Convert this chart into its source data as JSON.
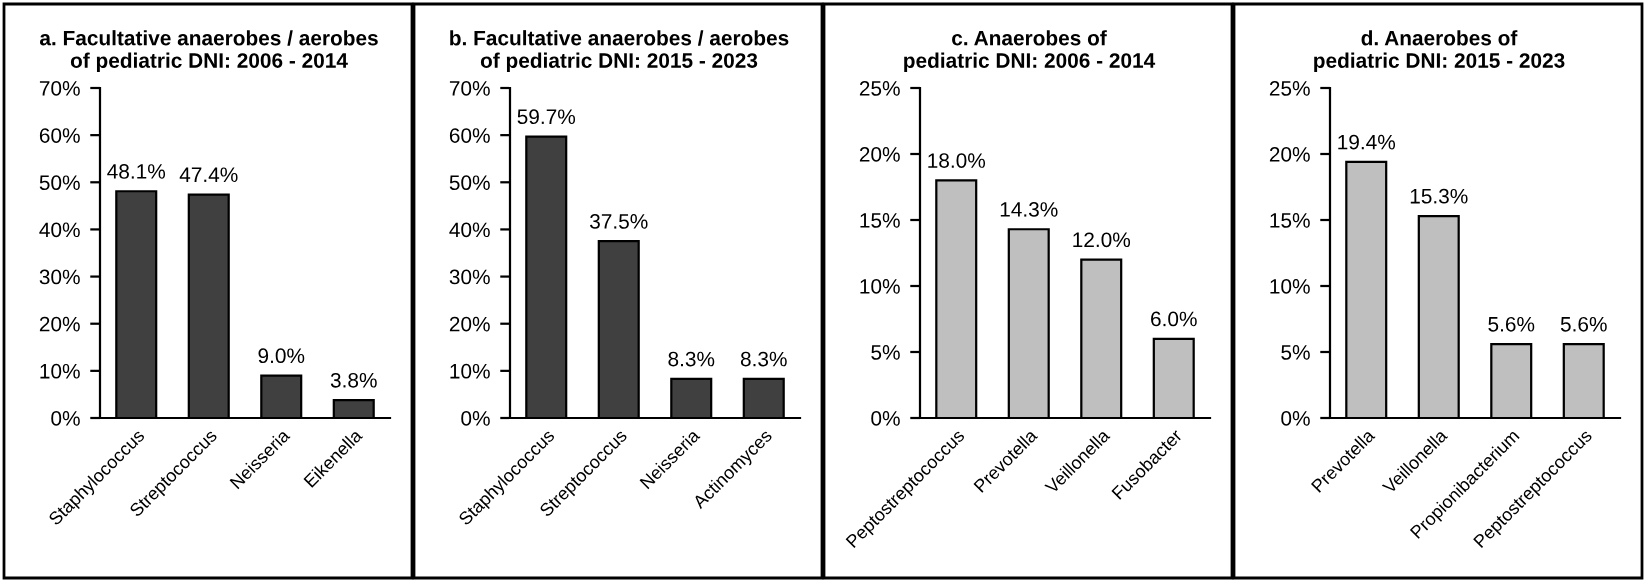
{
  "chart_data": [
    {
      "type": "bar",
      "title": "a. Facultative anaerobes / aerobes\nof pediatric DNI: 2006 - 2014",
      "categories": [
        "Staphylococcus",
        "Streptococcus",
        "Neisseria",
        "Eikenella"
      ],
      "values": [
        48.1,
        47.4,
        9.0,
        3.8
      ],
      "value_labels": [
        "48.1%",
        "47.4%",
        "9.0%",
        "3.8%"
      ],
      "color": "#404040",
      "ylim": [
        0,
        70
      ],
      "yticks": [
        {
          "value": 0,
          "label": "0%"
        },
        {
          "value": 10,
          "label": "10%"
        },
        {
          "value": 20,
          "label": "20%"
        },
        {
          "value": 30,
          "label": "30%"
        },
        {
          "value": 40,
          "label": "40%"
        },
        {
          "value": 50,
          "label": "50%"
        },
        {
          "value": 60,
          "label": "60%"
        },
        {
          "value": 70,
          "label": "70%"
        }
      ]
    },
    {
      "type": "bar",
      "title": "b. Facultative anaerobes / aerobes\nof pediatric DNI: 2015 - 2023",
      "categories": [
        "Staphylococcus",
        "Streptococcus",
        "Neisseria",
        "Actinomyces"
      ],
      "values": [
        59.7,
        37.5,
        8.3,
        8.3
      ],
      "value_labels": [
        "59.7%",
        "37.5%",
        "8.3%",
        "8.3%"
      ],
      "color": "#404040",
      "ylim": [
        0,
        70
      ],
      "yticks": [
        {
          "value": 0,
          "label": "0%"
        },
        {
          "value": 10,
          "label": "10%"
        },
        {
          "value": 20,
          "label": "20%"
        },
        {
          "value": 30,
          "label": "30%"
        },
        {
          "value": 40,
          "label": "40%"
        },
        {
          "value": 50,
          "label": "50%"
        },
        {
          "value": 60,
          "label": "60%"
        },
        {
          "value": 70,
          "label": "70%"
        }
      ]
    },
    {
      "type": "bar",
      "title": "c. Anaerobes of\npediatric DNI: 2006 - 2014",
      "categories": [
        "Peptostreptococcus",
        "Prevotella",
        "Veillonella",
        "Fusobacter"
      ],
      "values": [
        18.0,
        14.3,
        12.0,
        6.0
      ],
      "value_labels": [
        "18.0%",
        "14.3%",
        "12.0%",
        "6.0%"
      ],
      "color": "#bfbfbf",
      "ylim": [
        0,
        25
      ],
      "yticks": [
        {
          "value": 0,
          "label": "0%"
        },
        {
          "value": 5,
          "label": "5%"
        },
        {
          "value": 10,
          "label": "10%"
        },
        {
          "value": 15,
          "label": "15%"
        },
        {
          "value": 20,
          "label": "20%"
        },
        {
          "value": 25,
          "label": "25%"
        }
      ]
    },
    {
      "type": "bar",
      "title": "d. Anaerobes of\npediatric DNI: 2015 - 2023",
      "categories": [
        "Prevotella",
        "Veillonella",
        "Propionibacterium",
        "Peptostreptococcus"
      ],
      "values": [
        19.4,
        15.3,
        5.6,
        5.6
      ],
      "value_labels": [
        "19.4%",
        "15.3%",
        "5.6%",
        "5.6%"
      ],
      "color": "#bfbfbf",
      "ylim": [
        0,
        25
      ],
      "yticks": [
        {
          "value": 0,
          "label": "0%"
        },
        {
          "value": 5,
          "label": "5%"
        },
        {
          "value": 10,
          "label": "10%"
        },
        {
          "value": 15,
          "label": "15%"
        },
        {
          "value": 20,
          "label": "20%"
        },
        {
          "value": 25,
          "label": "25%"
        }
      ]
    }
  ]
}
